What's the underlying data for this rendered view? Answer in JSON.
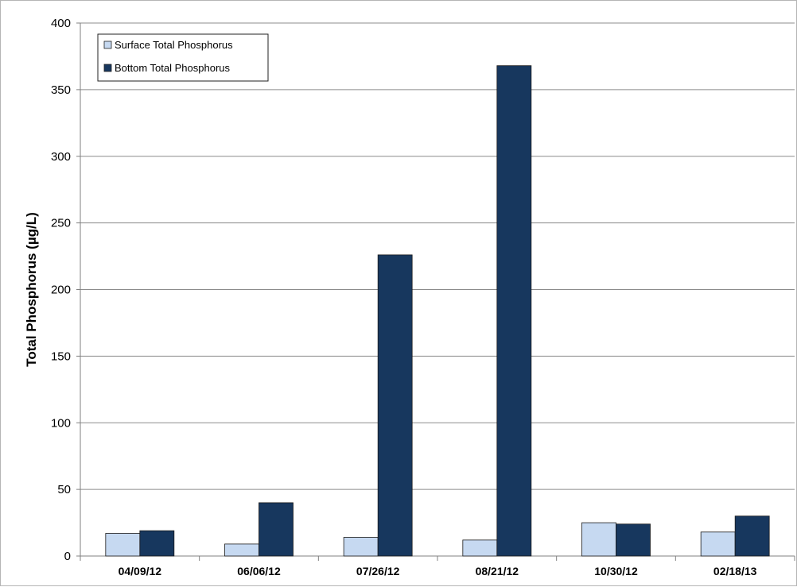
{
  "chart_data": {
    "type": "bar",
    "title": "",
    "xlabel": "",
    "ylabel": "Total Phosphorus (µg/L)",
    "ylim": [
      0,
      400
    ],
    "yticks": [
      0,
      50,
      100,
      150,
      200,
      250,
      300,
      350,
      400
    ],
    "categories": [
      "04/09/12",
      "06/06/12",
      "07/26/12",
      "08/21/12",
      "10/30/12",
      "02/18/13"
    ],
    "series": [
      {
        "name": "Surface Total Phosphorus",
        "color": "#c6d9f1",
        "values": [
          17,
          9,
          14,
          12,
          25,
          18
        ]
      },
      {
        "name": "Bottom Total Phosphorus",
        "color": "#17375e",
        "values": [
          19,
          40,
          226,
          368,
          24,
          30
        ]
      }
    ],
    "grid": true,
    "legend_position": "top-left"
  }
}
